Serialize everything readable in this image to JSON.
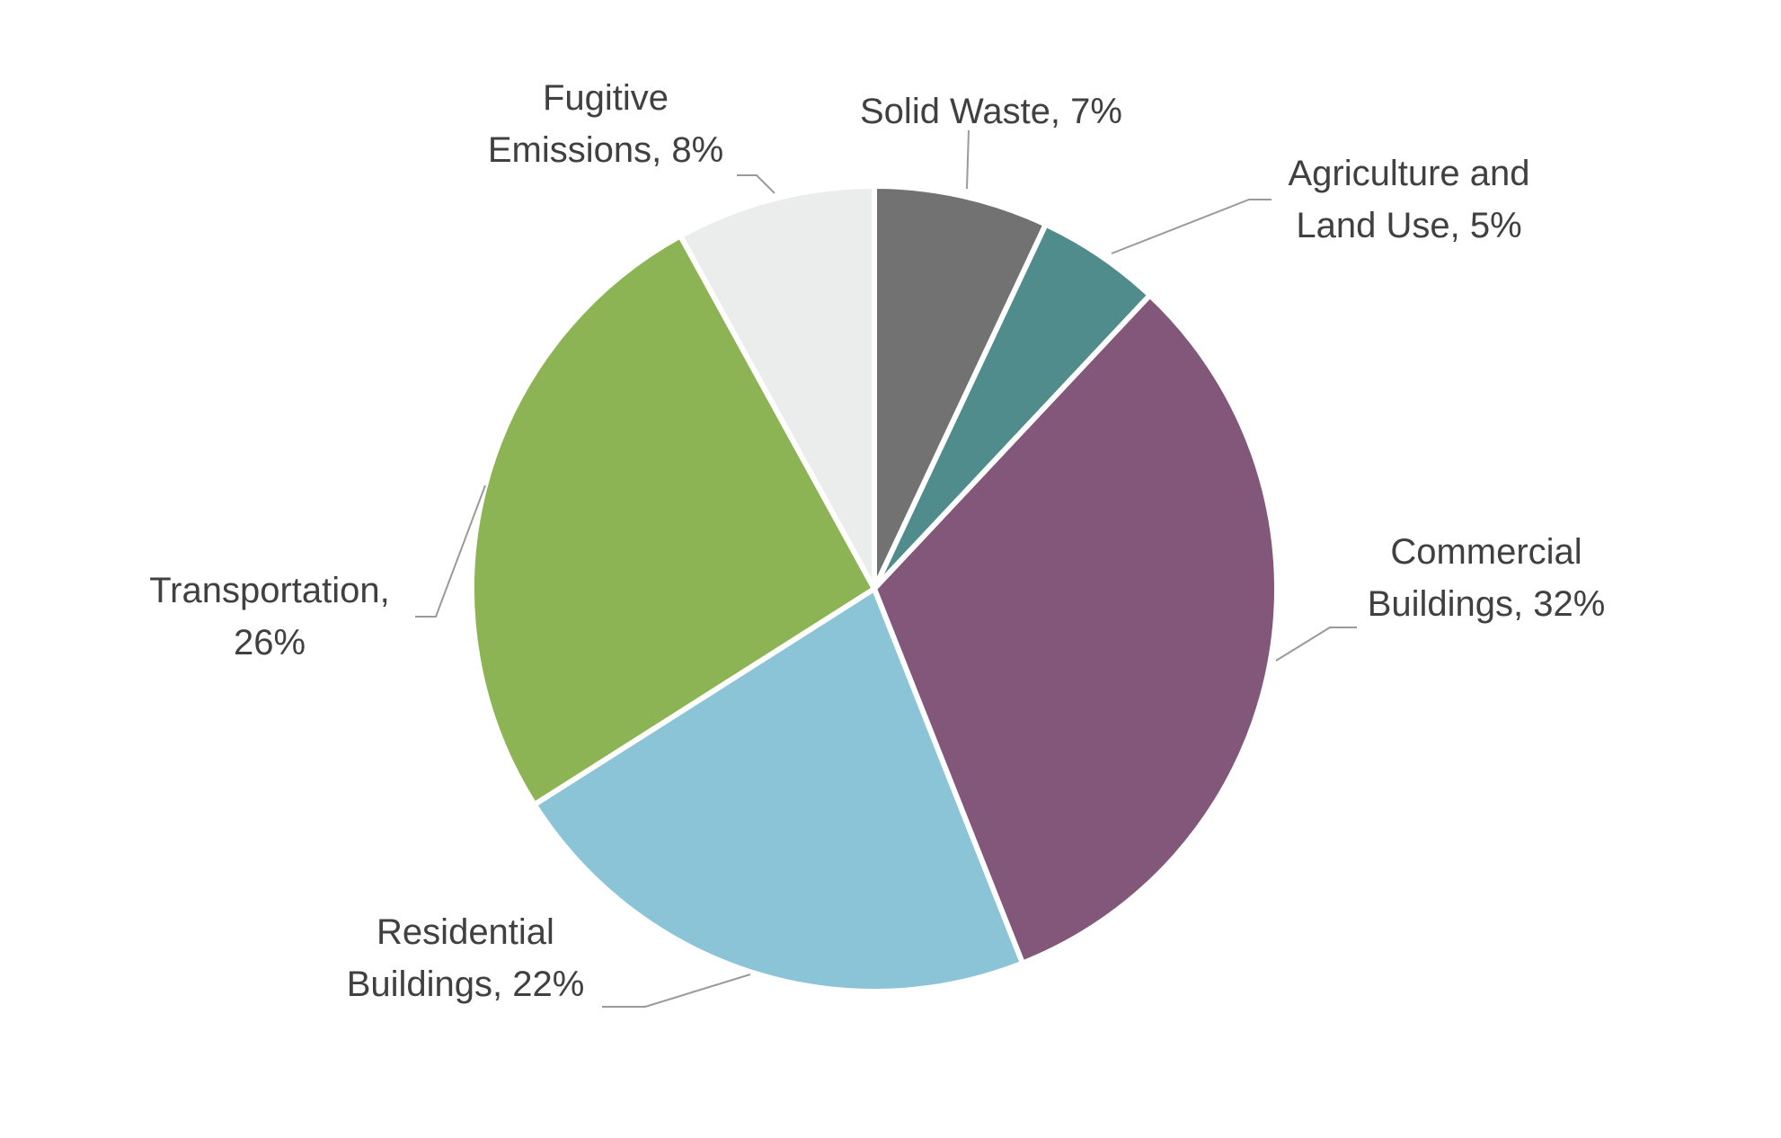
{
  "chart_data": {
    "type": "pie",
    "title": "",
    "start_angle_deg": 0,
    "direction": "clockwise",
    "slices": [
      {
        "name": "Solid Waste",
        "value": 7,
        "label_lines": [
          "Solid Waste, 7%"
        ],
        "color": "#727272"
      },
      {
        "name": "Agriculture and Land Use",
        "value": 5,
        "label_lines": [
          "Agriculture and",
          "Land Use, 5%"
        ],
        "color": "#4f8c8b"
      },
      {
        "name": "Commercial Buildings",
        "value": 32,
        "label_lines": [
          "Commercial",
          "Buildings, 32%"
        ],
        "color": "#835779"
      },
      {
        "name": "Residential Buildings",
        "value": 22,
        "label_lines": [
          "Residential",
          "Buildings, 22%"
        ],
        "color": "#8ac4d6"
      },
      {
        "name": "Transportation",
        "value": 26,
        "label_lines": [
          "Transportation,",
          "26%"
        ],
        "color": "#8db454"
      },
      {
        "name": "Fugitive Emissions",
        "value": 8,
        "label_lines": [
          "Fugitive",
          "Emissions, 8%"
        ],
        "color": "#ebeded"
      }
    ]
  }
}
